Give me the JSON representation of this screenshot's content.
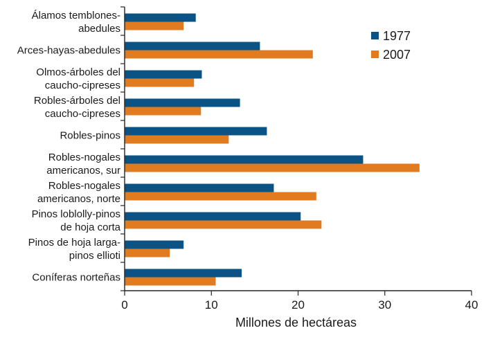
{
  "chart_data": {
    "type": "bar",
    "orientation": "horizontal",
    "title": "",
    "xlabel": "Millones de hectáreas",
    "ylabel": "",
    "xlim": [
      0,
      40
    ],
    "xticks": [
      0,
      10,
      20,
      30,
      40
    ],
    "grid": false,
    "legend_position": "top-right",
    "categories": [
      [
        "Álamos temblones-",
        "abedules"
      ],
      [
        "Arces-hayas-abedules"
      ],
      [
        "Olmos-árboles del",
        "caucho-cipreses"
      ],
      [
        "Robles-árboles del",
        "caucho-cipreses"
      ],
      [
        "Robles-pinos"
      ],
      [
        "Robles-nogales",
        "americanos, sur"
      ],
      [
        "Robles-nogales",
        "americanos, norte"
      ],
      [
        "Pinos loblolly-pinos",
        "de hoja corta"
      ],
      [
        "Pinos de hoja larga-",
        "pinos ellioti"
      ],
      [
        "Coníferas norteñas"
      ]
    ],
    "series": [
      {
        "name": "1977",
        "color": "#0b5384",
        "values": [
          8.2,
          15.6,
          8.9,
          13.3,
          16.4,
          27.5,
          17.2,
          20.3,
          6.8,
          13.5
        ]
      },
      {
        "name": "2007",
        "color": "#e07b20",
        "values": [
          6.8,
          21.7,
          8.0,
          8.8,
          12.0,
          34.0,
          22.1,
          22.7,
          5.2,
          10.5
        ]
      }
    ]
  }
}
